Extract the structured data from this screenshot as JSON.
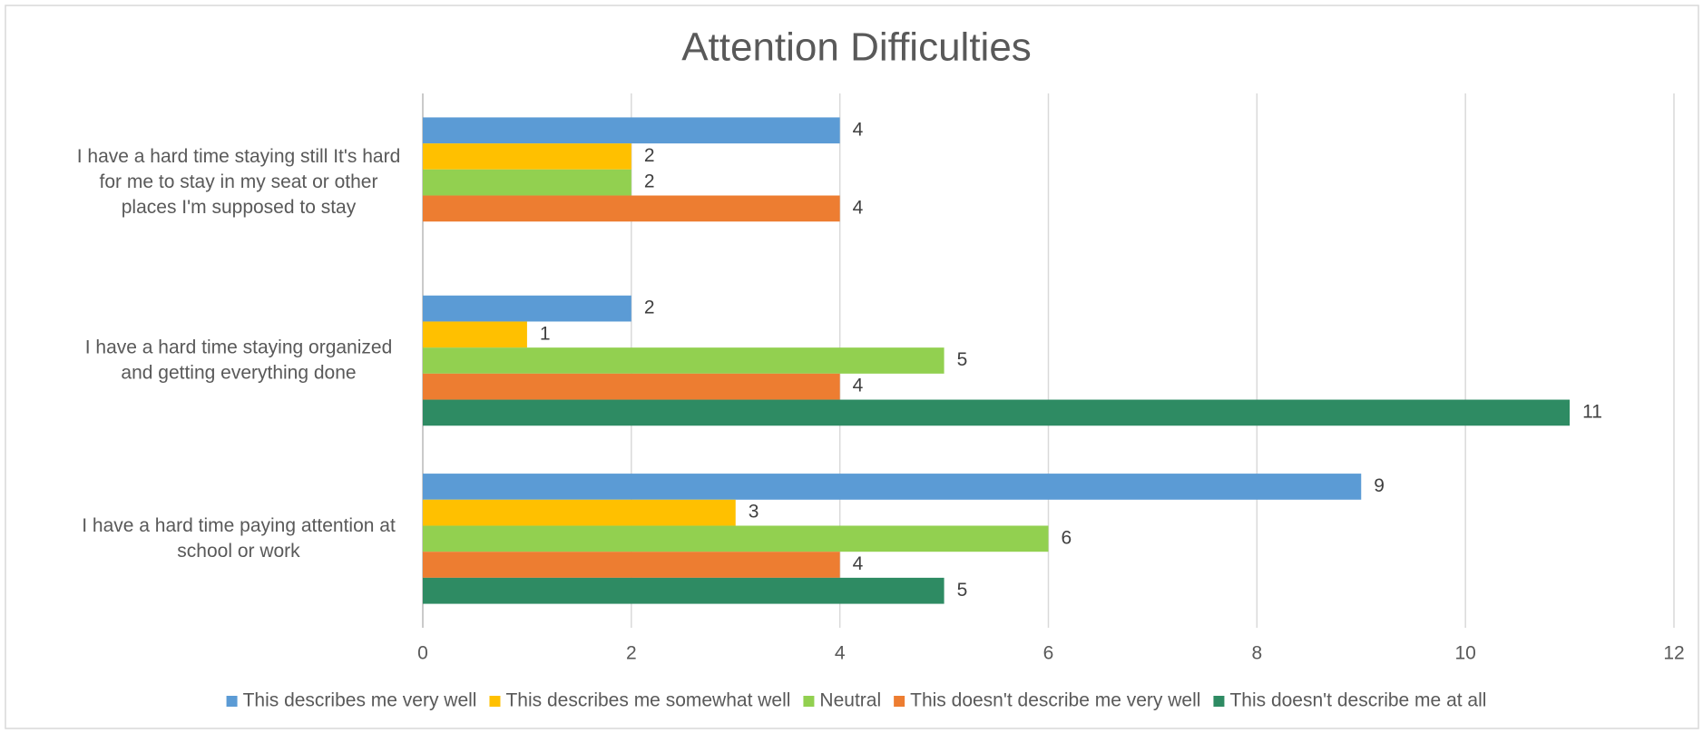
{
  "chart_data": {
    "type": "hbar",
    "title": "Attention Difficulties",
    "categories": [
      "I have a hard time staying still It's hard for me to stay in my seat or other places I'm supposed to stay",
      "I have a hard time staying organized and getting everything done",
      "I have a hard time paying attention at school or work"
    ],
    "series": [
      {
        "name": "This describes me very well",
        "color": "#5b9bd5",
        "values": [
          4,
          2,
          9
        ]
      },
      {
        "name": "This describes me somewhat well",
        "color": "#ffc000",
        "values": [
          2,
          1,
          3
        ]
      },
      {
        "name": "Neutral",
        "color": "#92d050",
        "values": [
          2,
          5,
          6
        ]
      },
      {
        "name": "This doesn't describe me very well",
        "color": "#ed7d31",
        "values": [
          4,
          4,
          4
        ]
      },
      {
        "name": "This doesn't describe me at all",
        "color": "#2e8b63",
        "values": [
          null,
          11,
          5
        ]
      }
    ],
    "xlim": [
      0,
      12
    ],
    "xticks": [
      0,
      2,
      4,
      6,
      8,
      10,
      12
    ],
    "grid": true,
    "legend": "bottom"
  }
}
